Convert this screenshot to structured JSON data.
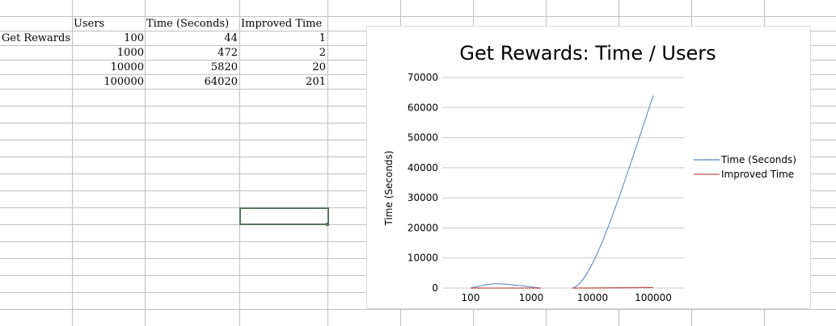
{
  "sheet": {
    "header_row": {
      "users": "Users",
      "time": "Time (Seconds)",
      "improved": "Improved Time"
    },
    "row_label": "Get Rewards",
    "rows": [
      {
        "users": "100",
        "time": "44",
        "improved": "1"
      },
      {
        "users": "1000",
        "time": "472",
        "improved": "2"
      },
      {
        "users": "10000",
        "time": "5820",
        "improved": "20"
      },
      {
        "users": "100000",
        "time": "64020",
        "improved": "201"
      }
    ],
    "grid_color": "#c0c0c0",
    "selection_color": "#5a735e"
  },
  "chart_data": {
    "type": "line",
    "title": "Get Rewards: Time / Users",
    "xlabel": "",
    "ylabel": "Time (Seconds)",
    "categories": [
      "100",
      "1000",
      "10000",
      "100000"
    ],
    "series": [
      {
        "name": "Time (Seconds)",
        "values": [
          44,
          472,
          5820,
          64020
        ],
        "color": "#4f81bd"
      },
      {
        "name": "Improved Time",
        "values": [
          1,
          2,
          20,
          201
        ],
        "color": "#c0504d"
      }
    ],
    "ylim": [
      0,
      70000
    ],
    "yticks": [
      "0",
      "10000",
      "20000",
      "30000",
      "40000",
      "50000",
      "60000",
      "70000"
    ],
    "grid": true,
    "legend": "right"
  }
}
